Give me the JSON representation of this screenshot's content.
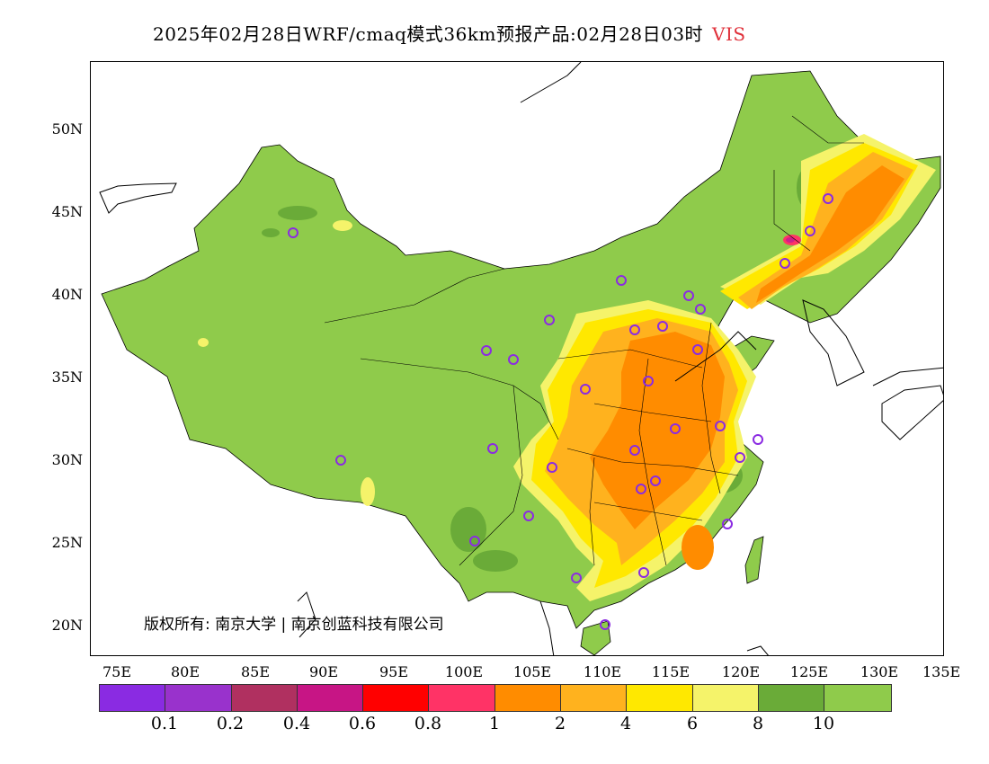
{
  "title": {
    "main": "2025年02月28日WRF/cmaq模式36km预报产品:02月28日03时",
    "variable": "VIS"
  },
  "map": {
    "lat_labels": [
      "50N",
      "45N",
      "40N",
      "35N",
      "30N",
      "25N",
      "20N"
    ],
    "lon_labels": [
      "75E",
      "80E",
      "85E",
      "90E",
      "95E",
      "100E",
      "105E",
      "110E",
      "115E",
      "120E",
      "125E",
      "130E",
      "135E"
    ],
    "copyright": "版权所有: 南京大学 | 南京创蓝科技有限公司",
    "fill_colors": {
      "base": "#8fcb4b",
      "dark_green": "#6aab38",
      "light_yellow": "#f5f36a",
      "yellow": "#ffe800",
      "light_orange": "#ffb21e",
      "orange": "#ff8c00",
      "red_pink": "#ff3366",
      "magenta": "#cc1f8a"
    },
    "station_marker_color": "#8b2be2"
  },
  "colorbar": {
    "colors": [
      "#8a2be2",
      "#9932cc",
      "#b03060",
      "#c71585",
      "#ff0000",
      "#ff3366",
      "#ff8c00",
      "#ffb21e",
      "#ffe800",
      "#f5f36a",
      "#6aab38",
      "#8fcb4b"
    ],
    "labels": [
      "0.1",
      "0.2",
      "0.4",
      "0.6",
      "0.8",
      "1",
      "2",
      "4",
      "6",
      "8",
      "10"
    ]
  }
}
